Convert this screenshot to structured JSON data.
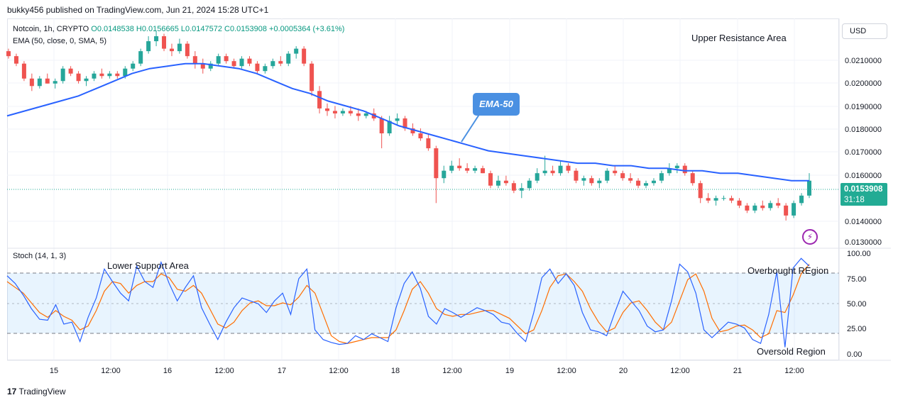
{
  "header": {
    "published": "bukky456 published on TradingView.com, Jun 21, 2024 15:28 UTC+1"
  },
  "legend": {
    "symbol": "Notcoin, 1h, CRYPTO",
    "ohlc": "O0.0148538 H0.0156665 L0.0147572 C0.0153908 +0.0005364 (+3.61%)",
    "ema": "EMA (50, close, 0, SMA, 5)",
    "stoch": "Stoch (14, 1, 3)"
  },
  "annotations": {
    "upper": "Upper Resistance Area",
    "lower": "Lower Support Area",
    "overbought": "Overbought REgion",
    "oversold": "Oversold Region",
    "ema_callout": "EMA-50"
  },
  "price_axis": {
    "currency": "USD",
    "ticks": [
      "0.0210000",
      "0.0200000",
      "0.0190000",
      "0.0180000",
      "0.0170000",
      "0.0160000",
      "0.0140000",
      "0.0130000"
    ],
    "last_price": "0.0153908",
    "countdown": "31:18"
  },
  "stoch_axis": {
    "ticks": [
      "100.00",
      "75.00",
      "50.00",
      "25.00",
      "0.00"
    ]
  },
  "time_axis": {
    "ticks": [
      "15",
      "12:00",
      "16",
      "12:00",
      "17",
      "12:00",
      "18",
      "12:00",
      "19",
      "12:00",
      "20",
      "12:00",
      "21",
      "12:00"
    ]
  },
  "footer": {
    "brand": "TradingView"
  },
  "colors": {
    "up": "#26a69a",
    "down": "#ef5350",
    "ema": "#2962ff",
    "stoch_k": "#2962ff",
    "stoch_d": "#ff6d00",
    "band": "#2196f3"
  },
  "chart_data": [
    {
      "type": "candlestick",
      "title": "Notcoin, 1h, CRYPTO",
      "ylim": [
        0.0128,
        0.0218
      ],
      "last_close": 0.0153908,
      "candles_ohlc": [
        [
          0.0206,
          0.0207,
          0.0203,
          0.0204
        ],
        [
          0.0204,
          0.0205,
          0.02,
          0.0201
        ],
        [
          0.0201,
          0.0202,
          0.0194,
          0.0195
        ],
        [
          0.0195,
          0.0197,
          0.019,
          0.0192
        ],
        [
          0.0192,
          0.0196,
          0.0191,
          0.0195
        ],
        [
          0.0195,
          0.0197,
          0.0193,
          0.0193
        ],
        [
          0.0193,
          0.0195,
          0.0191,
          0.0194
        ],
        [
          0.0194,
          0.02,
          0.0193,
          0.0199
        ],
        [
          0.0199,
          0.02,
          0.0196,
          0.0197
        ],
        [
          0.0197,
          0.0198,
          0.0193,
          0.0194
        ],
        [
          0.0194,
          0.0196,
          0.0192,
          0.0195
        ],
        [
          0.0195,
          0.0198,
          0.0194,
          0.0197
        ],
        [
          0.0197,
          0.0199,
          0.0195,
          0.0196
        ],
        [
          0.0196,
          0.0198,
          0.0195,
          0.0197
        ],
        [
          0.0197,
          0.0198,
          0.0195,
          0.0196
        ],
        [
          0.0196,
          0.02,
          0.0195,
          0.0199
        ],
        [
          0.0199,
          0.0202,
          0.0198,
          0.0201
        ],
        [
          0.0201,
          0.0207,
          0.02,
          0.0206
        ],
        [
          0.0206,
          0.0212,
          0.0205,
          0.021
        ],
        [
          0.021,
          0.0214,
          0.0208,
          0.0212
        ],
        [
          0.0212,
          0.0213,
          0.0206,
          0.0207
        ],
        [
          0.0207,
          0.0209,
          0.0204,
          0.0206
        ],
        [
          0.0206,
          0.0211,
          0.0205,
          0.0209
        ],
        [
          0.0209,
          0.021,
          0.0203,
          0.0204
        ],
        [
          0.0204,
          0.0206,
          0.0199,
          0.0201
        ],
        [
          0.0201,
          0.0203,
          0.0197,
          0.0199
        ],
        [
          0.0199,
          0.0202,
          0.0198,
          0.0201
        ],
        [
          0.0201,
          0.0205,
          0.02,
          0.0204
        ],
        [
          0.0204,
          0.0205,
          0.0201,
          0.0202
        ],
        [
          0.0202,
          0.0203,
          0.0199,
          0.02
        ],
        [
          0.02,
          0.0204,
          0.0199,
          0.0203
        ],
        [
          0.0203,
          0.0204,
          0.02,
          0.0201
        ],
        [
          0.0201,
          0.0202,
          0.0197,
          0.0198
        ],
        [
          0.0198,
          0.0201,
          0.0197,
          0.02
        ],
        [
          0.02,
          0.0203,
          0.0199,
          0.0202
        ],
        [
          0.0202,
          0.0204,
          0.02,
          0.0201
        ],
        [
          0.0201,
          0.0206,
          0.02,
          0.0205
        ],
        [
          0.0205,
          0.0208,
          0.0203,
          0.0207
        ],
        [
          0.0207,
          0.0208,
          0.02,
          0.0201
        ],
        [
          0.0201,
          0.0202,
          0.0188,
          0.019
        ],
        [
          0.019,
          0.0192,
          0.0181,
          0.0183
        ],
        [
          0.0183,
          0.0185,
          0.018,
          0.0182
        ],
        [
          0.0182,
          0.0184,
          0.0179,
          0.0181
        ],
        [
          0.0181,
          0.0183,
          0.018,
          0.0182
        ],
        [
          0.0182,
          0.0184,
          0.018,
          0.0181
        ],
        [
          0.0181,
          0.0183,
          0.0178,
          0.018
        ],
        [
          0.018,
          0.0182,
          0.0179,
          0.0181
        ],
        [
          0.0181,
          0.0183,
          0.0178,
          0.0179
        ],
        [
          0.0179,
          0.018,
          0.0167,
          0.0173
        ],
        [
          0.0173,
          0.018,
          0.0172,
          0.0178
        ],
        [
          0.0178,
          0.0181,
          0.0176,
          0.0179
        ],
        [
          0.0179,
          0.018,
          0.0174,
          0.0175
        ],
        [
          0.0175,
          0.0177,
          0.0172,
          0.0173
        ],
        [
          0.0173,
          0.0175,
          0.017,
          0.0171
        ],
        [
          0.0171,
          0.0173,
          0.0166,
          0.0167
        ],
        [
          0.0167,
          0.0168,
          0.0145,
          0.0155
        ],
        [
          0.0155,
          0.016,
          0.0153,
          0.0158
        ],
        [
          0.0158,
          0.0162,
          0.0157,
          0.016
        ],
        [
          0.016,
          0.0163,
          0.0158,
          0.0159
        ],
        [
          0.0159,
          0.0161,
          0.0157,
          0.0158
        ],
        [
          0.0158,
          0.016,
          0.0157,
          0.0159
        ],
        [
          0.0159,
          0.016,
          0.0157,
          0.0157
        ],
        [
          0.0157,
          0.0158,
          0.0151,
          0.0152
        ],
        [
          0.0152,
          0.0156,
          0.0151,
          0.0154
        ],
        [
          0.0154,
          0.0156,
          0.0152,
          0.0153
        ],
        [
          0.0153,
          0.0154,
          0.0149,
          0.015
        ],
        [
          0.015,
          0.0153,
          0.0147,
          0.0151
        ],
        [
          0.0151,
          0.0155,
          0.015,
          0.0154
        ],
        [
          0.0154,
          0.0159,
          0.0153,
          0.0157
        ],
        [
          0.0157,
          0.0164,
          0.0156,
          0.0158
        ],
        [
          0.0158,
          0.016,
          0.0156,
          0.0157
        ],
        [
          0.0157,
          0.0162,
          0.0156,
          0.016
        ],
        [
          0.016,
          0.0161,
          0.0157,
          0.0158
        ],
        [
          0.0158,
          0.0159,
          0.0153,
          0.0154
        ],
        [
          0.0154,
          0.0156,
          0.0152,
          0.0155
        ],
        [
          0.0155,
          0.0156,
          0.0152,
          0.0153
        ],
        [
          0.0153,
          0.0155,
          0.0151,
          0.0154
        ],
        [
          0.0154,
          0.0159,
          0.0153,
          0.0158
        ],
        [
          0.0158,
          0.016,
          0.0156,
          0.0157
        ],
        [
          0.0157,
          0.0158,
          0.0154,
          0.0155
        ],
        [
          0.0155,
          0.0157,
          0.0153,
          0.0154
        ],
        [
          0.0154,
          0.0155,
          0.0151,
          0.0152
        ],
        [
          0.0152,
          0.0154,
          0.0151,
          0.0153
        ],
        [
          0.0153,
          0.0155,
          0.0152,
          0.0154
        ],
        [
          0.0154,
          0.0158,
          0.0153,
          0.0157
        ],
        [
          0.0157,
          0.0161,
          0.0156,
          0.0159
        ],
        [
          0.0159,
          0.0161,
          0.0157,
          0.016
        ],
        [
          0.016,
          0.0161,
          0.0156,
          0.0157
        ],
        [
          0.0157,
          0.0158,
          0.0152,
          0.0153
        ],
        [
          0.0153,
          0.0154,
          0.0145,
          0.0147
        ],
        [
          0.0147,
          0.0149,
          0.0145,
          0.0146
        ],
        [
          0.0146,
          0.0148,
          0.0144,
          0.0147
        ],
        [
          0.0147,
          0.0148,
          0.0146,
          0.0147
        ],
        [
          0.0147,
          0.0148,
          0.0145,
          0.0146
        ],
        [
          0.0146,
          0.0147,
          0.0143,
          0.0144
        ],
        [
          0.0144,
          0.0145,
          0.0141,
          0.0142
        ],
        [
          0.0142,
          0.0145,
          0.0141,
          0.0144
        ],
        [
          0.0144,
          0.0146,
          0.0142,
          0.0143
        ],
        [
          0.0143,
          0.0146,
          0.0142,
          0.0145
        ],
        [
          0.0145,
          0.0147,
          0.0143,
          0.0144
        ],
        [
          0.0144,
          0.0145,
          0.0138,
          0.014
        ],
        [
          0.014,
          0.0146,
          0.0139,
          0.0145
        ],
        [
          0.0145,
          0.0149,
          0.0144,
          0.0148
        ],
        [
          0.0148,
          0.0157,
          0.0147,
          0.0154
        ]
      ],
      "ema50": [
        0.018,
        0.0182,
        0.0184,
        0.0186,
        0.0188,
        0.0191,
        0.0194,
        0.0197,
        0.0199,
        0.02,
        0.0201,
        0.0201,
        0.02,
        0.0199,
        0.0197,
        0.0194,
        0.0191,
        0.0189,
        0.0186,
        0.0184,
        0.0182,
        0.0179,
        0.0176,
        0.0174,
        0.0172,
        0.017,
        0.0168,
        0.0166,
        0.0165,
        0.0164,
        0.0163,
        0.0162,
        0.0161,
        0.0161,
        0.016,
        0.016,
        0.0159,
        0.0159,
        0.0158,
        0.0158,
        0.0157,
        0.0157,
        0.0156,
        0.0155,
        0.0154,
        0.0154
      ]
    },
    {
      "type": "line",
      "title": "Stoch (14, 1, 3)",
      "ylim": [
        -8,
        105
      ],
      "bands": [
        20,
        50,
        80
      ],
      "series": [
        {
          "name": "%K",
          "values": [
            78,
            70,
            58,
            44,
            33,
            32,
            48,
            28,
            30,
            10,
            35,
            55,
            85,
            72,
            60,
            52,
            88,
            72,
            66,
            92,
            70,
            52,
            66,
            78,
            45,
            28,
            12,
            30,
            45,
            55,
            52,
            49,
            40,
            52,
            60,
            38,
            75,
            85,
            22,
            12,
            9,
            7,
            8,
            16,
            12,
            18,
            14,
            10,
            45,
            70,
            82,
            65,
            36,
            28,
            44,
            40,
            35,
            40,
            45,
            42,
            38,
            30,
            28,
            18,
            10,
            40,
            76,
            85,
            70,
            80,
            68,
            40,
            22,
            20,
            16,
            40,
            62,
            52,
            42,
            26,
            20,
            22,
            52,
            90,
            82,
            60,
            22,
            14,
            22,
            30,
            28,
            24,
            12,
            8,
            38,
            82,
            4,
            86,
            96,
            88
          ]
        },
        {
          "name": "%D",
          "values": [
            72,
            66,
            60,
            50,
            40,
            35,
            42,
            36,
            32,
            22,
            26,
            42,
            62,
            72,
            70,
            60,
            68,
            72,
            72,
            80,
            76,
            64,
            62,
            68,
            60,
            44,
            28,
            24,
            30,
            42,
            50,
            52,
            47,
            47,
            50,
            48,
            56,
            68,
            60,
            38,
            16,
            10,
            8,
            10,
            12,
            14,
            14,
            14,
            22,
            42,
            64,
            72,
            60,
            44,
            38,
            36,
            38,
            38,
            40,
            42,
            42,
            38,
            34,
            26,
            18,
            22,
            42,
            66,
            78,
            80,
            72,
            62,
            44,
            30,
            20,
            24,
            40,
            50,
            52,
            42,
            30,
            22,
            30,
            52,
            74,
            80,
            62,
            34,
            20,
            22,
            26,
            27,
            22,
            14,
            18,
            42,
            40,
            58,
            80,
            90
          ]
        }
      ]
    }
  ]
}
